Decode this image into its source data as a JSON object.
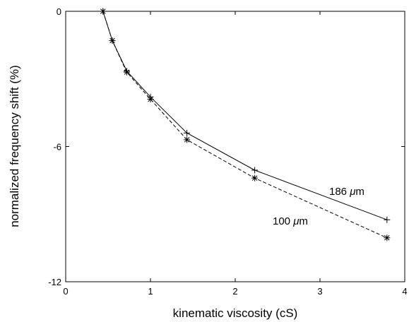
{
  "chart_data": {
    "type": "line",
    "title": "",
    "xlabel": "kinematic viscosity (cS)",
    "ylabel": "normalized frequency shift (%)",
    "xlim": [
      0,
      4
    ],
    "ylim": [
      -12,
      0
    ],
    "xticks": [
      "0",
      "1",
      "2",
      "3",
      "4"
    ],
    "xtick_values": [
      0,
      1,
      2,
      3,
      4
    ],
    "yticks": [
      "0",
      "-6",
      "-12"
    ],
    "ytick_values": [
      0,
      -6,
      -12
    ],
    "grid": false,
    "legend": "none",
    "series": [
      {
        "name": "186 μm",
        "label_parts": [
          "186 ",
          "μ",
          "m"
        ],
        "line_style": "solid",
        "marker": "plus",
        "x": [
          0.44,
          0.55,
          0.72,
          1.0,
          1.43,
          2.23,
          3.79
        ],
        "y": [
          0.0,
          -1.3,
          -2.65,
          -3.8,
          -5.4,
          -7.05,
          -9.25
        ]
      },
      {
        "name": "100 μm",
        "label_parts": [
          "100 ",
          "μ",
          "m"
        ],
        "line_style": "dashed",
        "marker": "asterisk",
        "x": [
          0.44,
          0.55,
          0.72,
          1.0,
          1.43,
          2.23,
          3.79
        ],
        "y": [
          0.0,
          -1.3,
          -2.7,
          -3.9,
          -5.7,
          -7.4,
          -10.05
        ]
      }
    ]
  }
}
